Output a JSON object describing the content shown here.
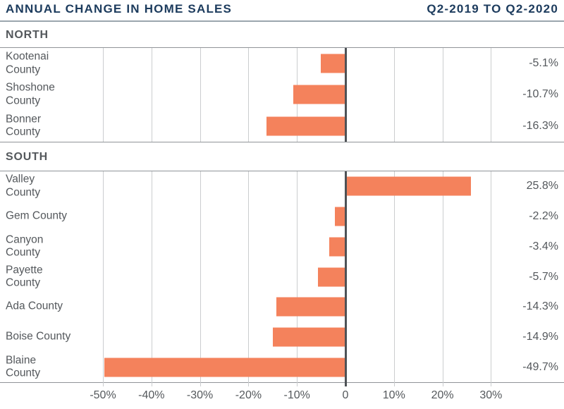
{
  "header": {
    "title": "ANNUAL CHANGE IN HOME SALES",
    "period": "Q2-2019 TO Q2-2020"
  },
  "colors": {
    "bar": "#F4825C",
    "title_text": "#1C3B5D",
    "body_text": "#54585C",
    "gridline": "#CBCDCF",
    "zero_line": "#4E5256",
    "section_border": "#909498",
    "header_rule": "#9BA6AE"
  },
  "axis": {
    "min": -50,
    "max": 30,
    "step": 10,
    "tick_values": [
      -50,
      -40,
      -30,
      -20,
      -10,
      0,
      10,
      20,
      30
    ],
    "tick_labels": [
      "-50%",
      "-40%",
      "-30%",
      "-20%",
      "-10%",
      "0",
      "10%",
      "20%",
      "30%"
    ]
  },
  "chart_data": {
    "type": "bar",
    "orientation": "horizontal",
    "title": "ANNUAL CHANGE IN HOME SALES",
    "subtitle": "Q2-2019 TO Q2-2020",
    "xlabel": "",
    "ylabel": "",
    "xlim": [
      -50,
      30
    ],
    "grid": true,
    "sections": [
      {
        "label": "NORTH",
        "rows": [
          {
            "category": "Kootenai County",
            "label": "Kootenai\nCounty",
            "value": -5.1,
            "value_label": "-5.1%"
          },
          {
            "category": "Shoshone County",
            "label": "Shoshone\nCounty",
            "value": -10.7,
            "value_label": "-10.7%"
          },
          {
            "category": "Bonner County",
            "label": "Bonner\nCounty",
            "value": -16.3,
            "value_label": "-16.3%"
          }
        ]
      },
      {
        "label": "SOUTH",
        "rows": [
          {
            "category": "Valley County",
            "label": "Valley\nCounty",
            "value": 25.8,
            "value_label": "25.8%"
          },
          {
            "category": "Gem County",
            "label": "Gem County",
            "value": -2.2,
            "value_label": "-2.2%"
          },
          {
            "category": "Canyon County",
            "label": "Canyon\nCounty",
            "value": -3.4,
            "value_label": "-3.4%"
          },
          {
            "category": "Payette County",
            "label": "Payette\nCounty",
            "value": -5.7,
            "value_label": "-5.7%"
          },
          {
            "category": "Ada County",
            "label": "Ada County",
            "value": -14.3,
            "value_label": "-14.3%"
          },
          {
            "category": "Boise County",
            "label": "Boise County",
            "value": -14.9,
            "value_label": "-14.9%"
          },
          {
            "category": "Blaine County",
            "label": "Blaine\nCounty",
            "value": -49.7,
            "value_label": "-49.7%"
          }
        ]
      }
    ]
  }
}
